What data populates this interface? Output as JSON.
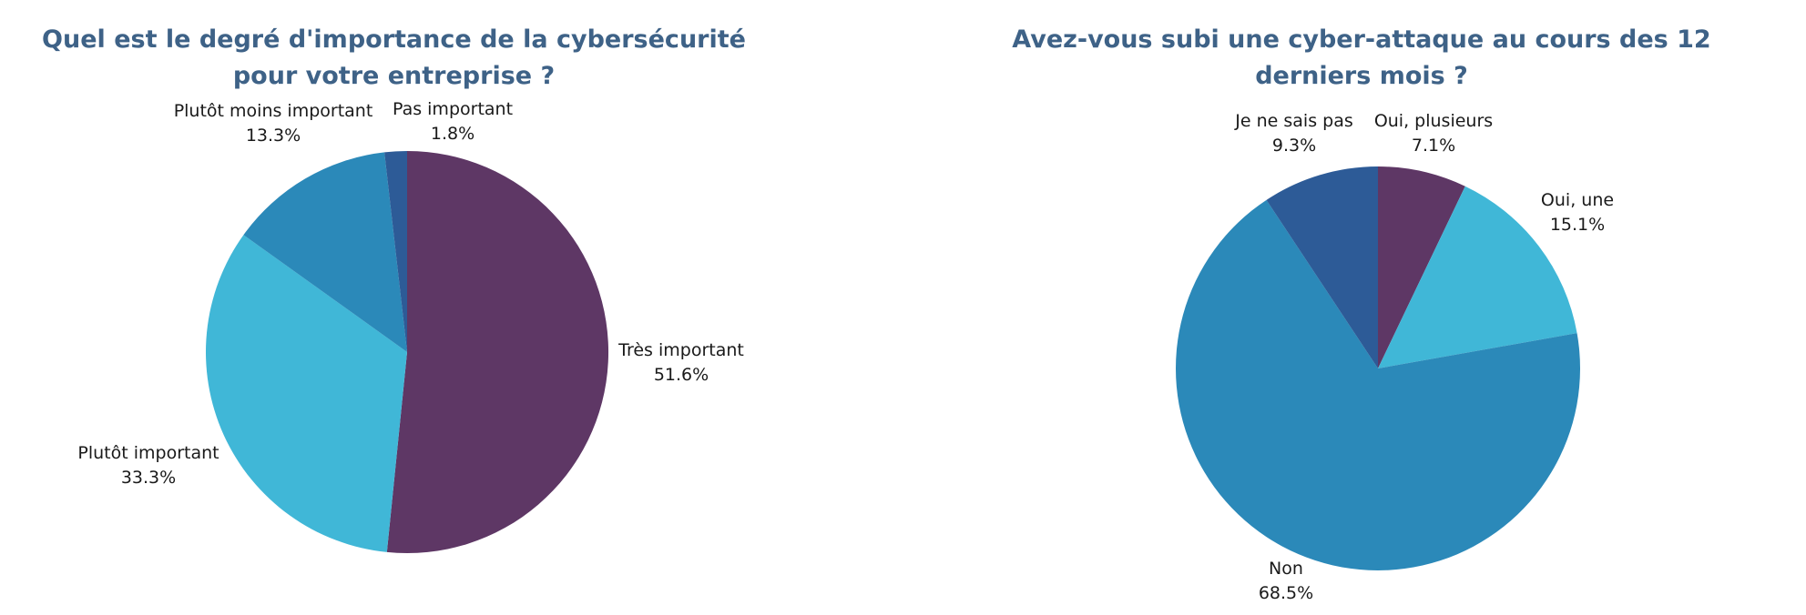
{
  "colors": {
    "title": "#3e6287",
    "label": "#1a1a1a",
    "plum": "#5e3765",
    "sky": "#40b7d7",
    "steel": "#2b89b9",
    "navy": "#2d5b97"
  },
  "chart_data": [
    {
      "type": "pie",
      "title": "Quel est le degré d'importance de la cybersécurité pour votre entreprise ?",
      "slices": [
        {
          "name": "Très important",
          "value": 51.6,
          "value_label": "51.6%",
          "color": "#5e3765"
        },
        {
          "name": "Plutôt important",
          "value": 33.3,
          "value_label": "33.3%",
          "color": "#40b7d7"
        },
        {
          "name": "Plutôt moins important",
          "value": 13.3,
          "value_label": "13.3%",
          "color": "#2b89b9"
        },
        {
          "name": "Pas important",
          "value": 1.8,
          "value_label": "1.8%",
          "color": "#2d5b97"
        }
      ],
      "start_angle": "12 o'clock",
      "direction": "clockwise",
      "legend": "none"
    },
    {
      "type": "pie",
      "title": "Avez-vous subi une cyber-attaque au cours des 12 derniers mois ?",
      "slices": [
        {
          "name": "Oui, plusieurs",
          "value": 7.1,
          "value_label": "7.1%",
          "color": "#5e3765"
        },
        {
          "name": "Oui, une",
          "value": 15.1,
          "value_label": "15.1%",
          "color": "#40b7d7"
        },
        {
          "name": "Non",
          "value": 68.5,
          "value_label": "68.5%",
          "color": "#2b89b9"
        },
        {
          "name": "Je ne sais pas",
          "value": 9.3,
          "value_label": "9.3%",
          "color": "#2d5b97"
        }
      ],
      "start_angle": "12 o'clock",
      "direction": "clockwise",
      "legend": "none"
    }
  ]
}
